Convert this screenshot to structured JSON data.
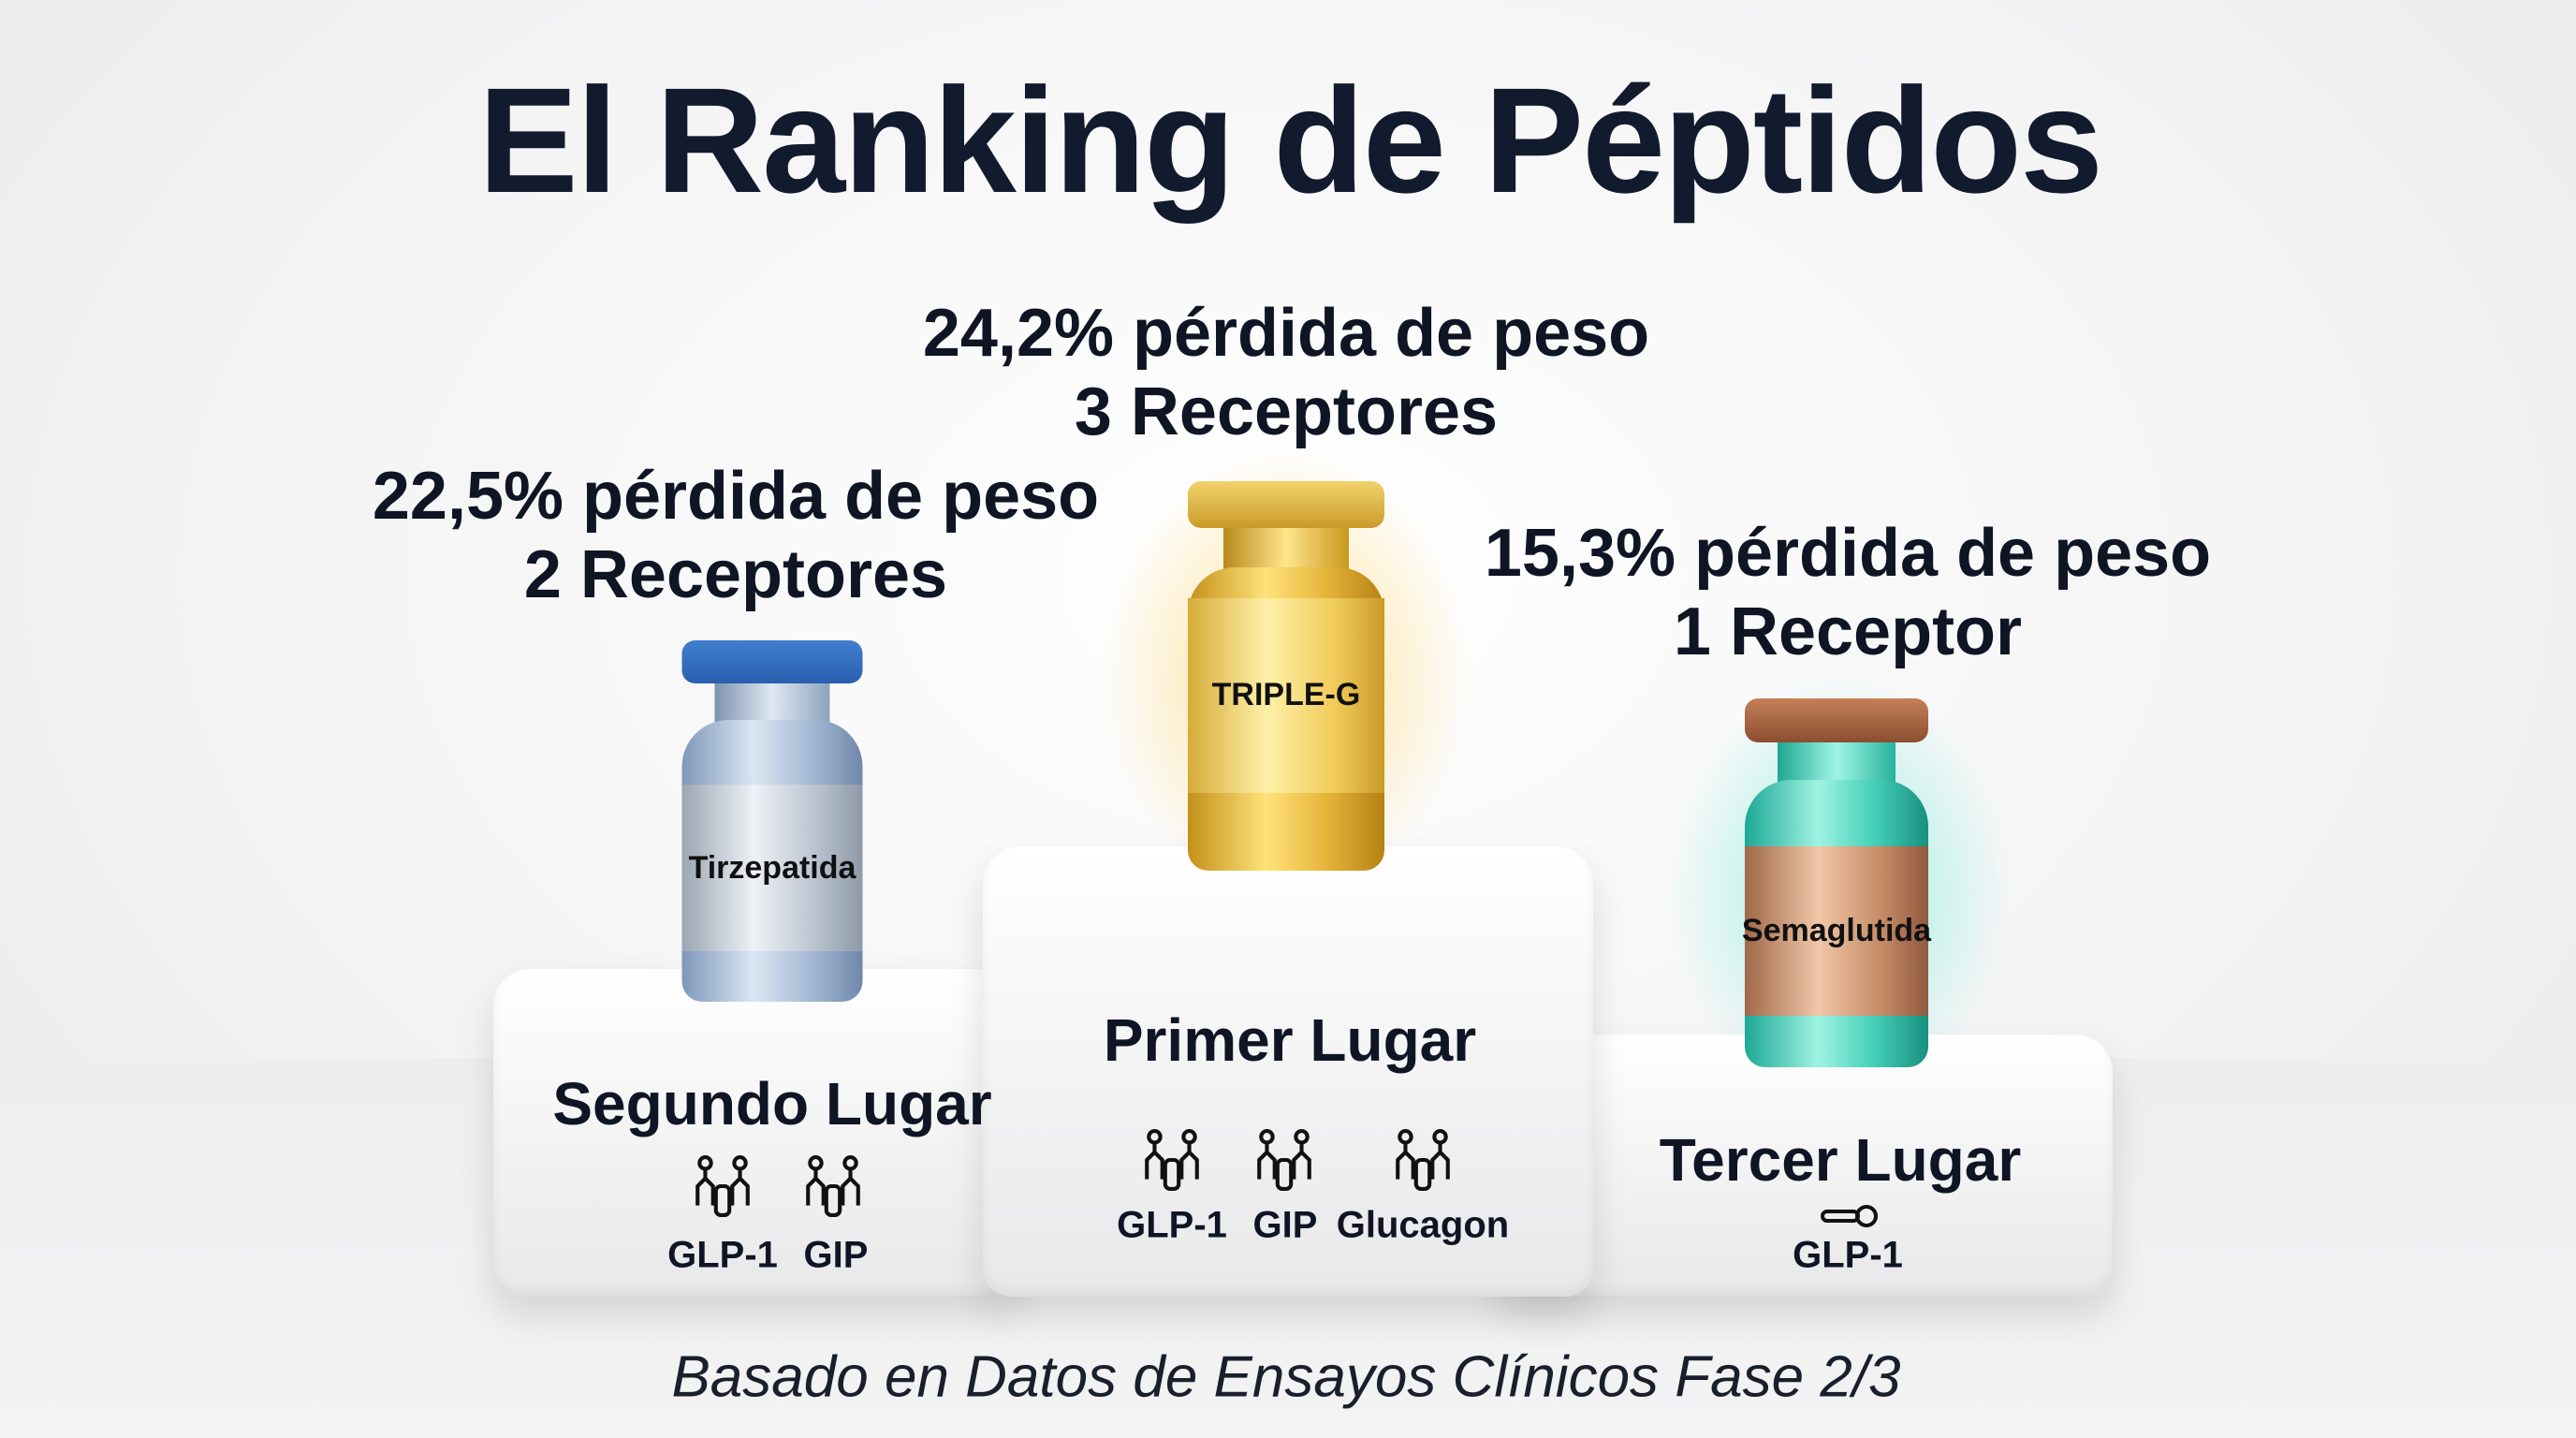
{
  "title": "El Ranking de Péptidos",
  "first": {
    "stat": "24,2% pérdida de peso",
    "receptors": "3 Receptores",
    "vial_label": "TRIPLE-G",
    "place": "Primer Lugar",
    "targets": [
      "GLP-1",
      "GIP",
      "Glucagon"
    ]
  },
  "second": {
    "stat": "22,5% pérdida de peso",
    "receptors": "2 Receptores",
    "vial_label": "Tirzepatida",
    "place": "Segundo Lugar",
    "targets": [
      "GLP-1",
      "GIP"
    ]
  },
  "third": {
    "stat": "15,3% pérdida de peso",
    "receptors": "1 Receptor",
    "vial_label": "Semaglutida",
    "place": "Tercer Lugar",
    "targets": [
      "GLP-1"
    ]
  },
  "footer": "Basado en Datos de Ensayos Clínicos Fase 2/3",
  "colors": {
    "gold": "#e0b22c",
    "silver_blue": "#8aa6c8",
    "teal": "#2fc7b0",
    "copper": "#b0704a"
  }
}
